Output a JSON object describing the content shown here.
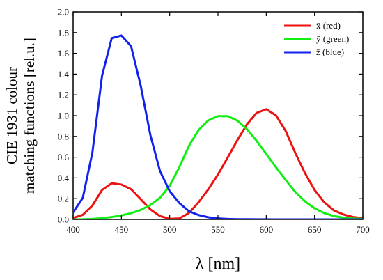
{
  "chart_data": {
    "type": "line",
    "xlabel": "λ [nm]",
    "ylabel": [
      "CIE 1931 colour",
      "matching functions [rel.u.]"
    ],
    "xlim": [
      400,
      700
    ],
    "ylim": [
      0,
      2.0
    ],
    "xticks": [
      400,
      450,
      500,
      550,
      600,
      650,
      700
    ],
    "yticks": [
      "0.0",
      "0.2",
      "0.4",
      "0.6",
      "0.8",
      "1.0",
      "1.2",
      "1.4",
      "1.6",
      "1.8",
      "2.0"
    ],
    "grid": false,
    "legend_position": "top-right",
    "x": [
      400,
      410,
      420,
      430,
      440,
      450,
      460,
      470,
      480,
      490,
      500,
      510,
      520,
      530,
      540,
      550,
      560,
      570,
      580,
      590,
      600,
      610,
      620,
      630,
      640,
      650,
      660,
      670,
      680,
      690,
      700
    ],
    "series": [
      {
        "name": "x̄ (red)",
        "color": "#ee1111",
        "values": [
          0.014,
          0.044,
          0.134,
          0.284,
          0.348,
          0.336,
          0.291,
          0.195,
          0.096,
          0.032,
          0.005,
          0.009,
          0.063,
          0.166,
          0.29,
          0.433,
          0.595,
          0.762,
          0.916,
          1.026,
          1.062,
          1.003,
          0.854,
          0.642,
          0.448,
          0.284,
          0.165,
          0.087,
          0.047,
          0.023,
          0.011
        ]
      },
      {
        "name": "ȳ (green)",
        "color": "#11ee11",
        "values": [
          0.0004,
          0.0012,
          0.004,
          0.012,
          0.023,
          0.038,
          0.06,
          0.091,
          0.139,
          0.208,
          0.323,
          0.503,
          0.71,
          0.862,
          0.954,
          0.995,
          0.995,
          0.952,
          0.87,
          0.757,
          0.631,
          0.503,
          0.381,
          0.265,
          0.175,
          0.107,
          0.061,
          0.032,
          0.017,
          0.008,
          0.004
        ]
      },
      {
        "name": "z̄ (blue)",
        "color": "#1122ee",
        "values": [
          0.068,
          0.207,
          0.646,
          1.386,
          1.747,
          1.772,
          1.669,
          1.288,
          0.813,
          0.465,
          0.272,
          0.158,
          0.078,
          0.042,
          0.02,
          0.009,
          0.004,
          0.002,
          0.002,
          0.001,
          0.001,
          0.0,
          0.0,
          0.0,
          0.0,
          0.0,
          0.0,
          0.0,
          0.0,
          0.0,
          0.0
        ]
      }
    ]
  }
}
